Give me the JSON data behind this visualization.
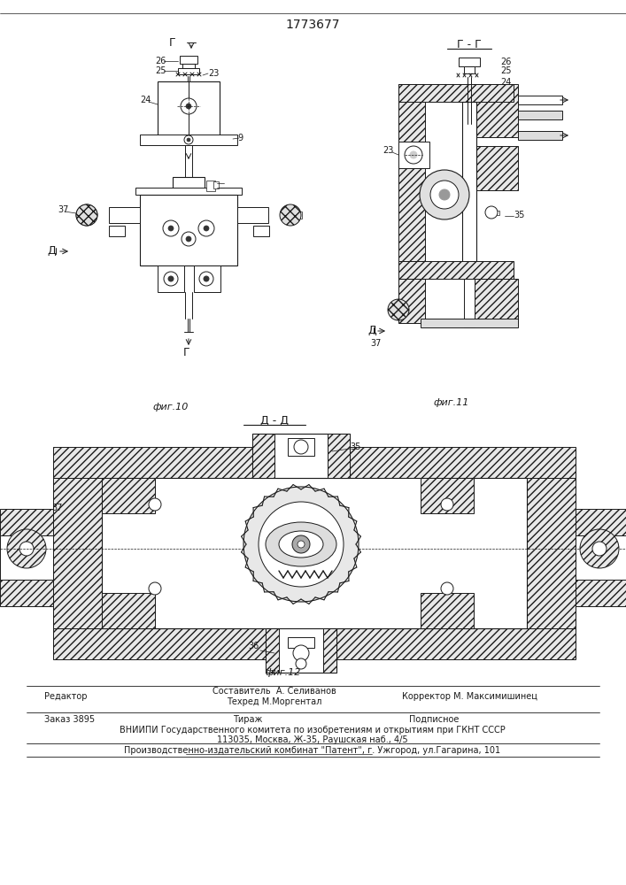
{
  "patent_number": "1773677",
  "bg": "#f5f5f0",
  "lc": "#1a1a1a",
  "fig_width": 7.07,
  "fig_height": 10.0,
  "footer": {
    "editor_label": "Редактор",
    "composer": "Составитель  А. Селиванов",
    "techred": "Техред М.Моргентал",
    "corrector": "Корректор М. Максимишинец",
    "order": "Заказ 3895",
    "tirazh": "Тираж",
    "podpisnoe": "Подписное",
    "vniipи": "ВНИИПИ Государственного комитета по изобретениям и открытиям при ГКНТ СССР",
    "address": "113035, Москва, Ж-35, Раушская наб., 4/5",
    "publisher": "Производственно-издательский комбинат \"Патент\", г. Ужгород, ул.Гагарина, 101"
  },
  "fig10_label": "фиг.10",
  "fig11_label": "фиг.11",
  "fig12_label": "фиг.12",
  "section_dd": "Д - Д",
  "section_gg": "Г - Г"
}
